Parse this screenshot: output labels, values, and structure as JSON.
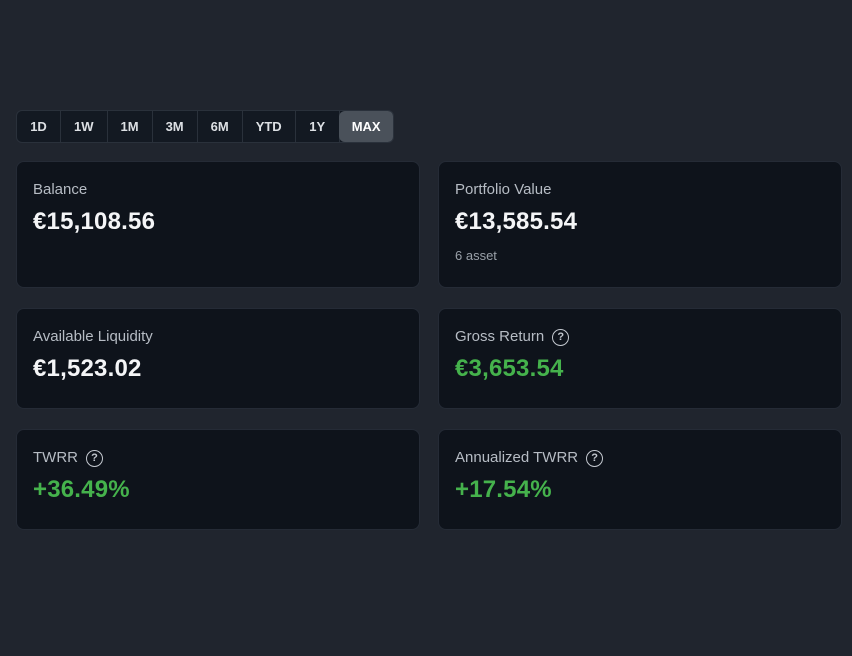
{
  "time_range": {
    "options": [
      "1D",
      "1W",
      "1M",
      "3M",
      "6M",
      "YTD",
      "1Y",
      "MAX"
    ],
    "selected": "MAX"
  },
  "cards": {
    "balance": {
      "label": "Balance",
      "value": "€15,108.56"
    },
    "portfolio_value": {
      "label": "Portfolio Value",
      "value": "€13,585.54",
      "subtext": "6 asset"
    },
    "available_liquidity": {
      "label": "Available Liquidity",
      "value": "€1,523.02"
    },
    "gross_return": {
      "label": "Gross Return",
      "value": "€3,653.54"
    },
    "twrr": {
      "label": "TWRR",
      "value": "+36.49%"
    },
    "annualized_twrr": {
      "label": "Annualized TWRR",
      "value": "+17.54%"
    }
  },
  "icons": {
    "help": "?"
  },
  "colors": {
    "page-bg": "#20252e",
    "card-bg": "#0e131b",
    "card-border": "#252b36",
    "tab-bg": "#131922",
    "tab-border": "#2a313b",
    "tab-selected-bg": "#4a515a",
    "positive": "#45b24c",
    "value-text": "#f4f5f7",
    "label-text": "#b6bcc4",
    "subtext": "#99a0a8"
  }
}
